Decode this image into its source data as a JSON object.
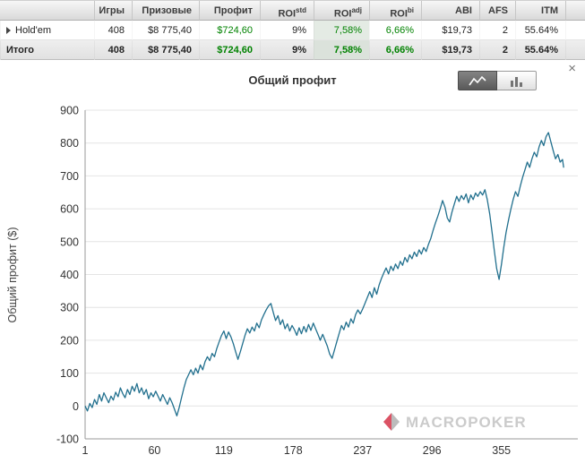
{
  "table": {
    "headers": [
      {
        "label": ""
      },
      {
        "label": "Игры"
      },
      {
        "label": "Призовые"
      },
      {
        "label": "Профит"
      },
      {
        "label": "ROI",
        "sup": "std"
      },
      {
        "label": "ROI",
        "sup": "adj"
      },
      {
        "label": "ROI",
        "sup": "bi"
      },
      {
        "label": "ABI"
      },
      {
        "label": "AFS"
      },
      {
        "label": "ITM"
      }
    ],
    "rows": {
      "holdem": {
        "name": "Hold'em",
        "games": "408",
        "prizes": "$8 775,40",
        "profit": "$724,60",
        "roi_std": "9%",
        "roi_adj": "7,58%",
        "roi_bi": "6,66%",
        "abi": "$19,73",
        "afs": "2",
        "itm": "55.64%"
      },
      "total": {
        "name": "Итого",
        "games": "408",
        "prizes": "$8 775,40",
        "profit": "$724,60",
        "roi_std": "9%",
        "roi_adj": "7,58%",
        "roi_bi": "6,66%",
        "abi": "$19,73",
        "afs": "2",
        "itm": "55.64%"
      }
    }
  },
  "panel": {
    "title": "Общий профит",
    "close": "×"
  },
  "watermark": {
    "text": "MACROPOKER"
  },
  "chart_data": {
    "type": "line",
    "title": "Общий профит",
    "xlabel": "",
    "ylabel": "Общий профит ($)",
    "xlim": [
      1,
      420
    ],
    "ylim": [
      -100,
      900
    ],
    "x_ticks": [
      1,
      60,
      119,
      178,
      237,
      296,
      355
    ],
    "y_ticks": [
      -100,
      0,
      100,
      200,
      300,
      400,
      500,
      600,
      700,
      800,
      900
    ],
    "grid": "horizontal",
    "legend": "none",
    "line_color": "#22708e",
    "points": [
      [
        1,
        0
      ],
      [
        3,
        -15
      ],
      [
        5,
        8
      ],
      [
        7,
        -5
      ],
      [
        9,
        20
      ],
      [
        11,
        5
      ],
      [
        13,
        35
      ],
      [
        15,
        15
      ],
      [
        17,
        40
      ],
      [
        19,
        25
      ],
      [
        21,
        10
      ],
      [
        23,
        30
      ],
      [
        25,
        18
      ],
      [
        27,
        42
      ],
      [
        29,
        28
      ],
      [
        31,
        55
      ],
      [
        33,
        38
      ],
      [
        35,
        25
      ],
      [
        37,
        50
      ],
      [
        39,
        35
      ],
      [
        41,
        60
      ],
      [
        43,
        45
      ],
      [
        45,
        68
      ],
      [
        47,
        40
      ],
      [
        49,
        55
      ],
      [
        51,
        35
      ],
      [
        53,
        50
      ],
      [
        55,
        22
      ],
      [
        57,
        40
      ],
      [
        59,
        28
      ],
      [
        61,
        45
      ],
      [
        63,
        30
      ],
      [
        65,
        15
      ],
      [
        67,
        35
      ],
      [
        69,
        20
      ],
      [
        71,
        5
      ],
      [
        73,
        25
      ],
      [
        75,
        10
      ],
      [
        77,
        -10
      ],
      [
        79,
        -30
      ],
      [
        81,
        -5
      ],
      [
        83,
        25
      ],
      [
        85,
        55
      ],
      [
        87,
        80
      ],
      [
        89,
        95
      ],
      [
        91,
        110
      ],
      [
        93,
        95
      ],
      [
        95,
        115
      ],
      [
        97,
        100
      ],
      [
        99,
        125
      ],
      [
        101,
        110
      ],
      [
        103,
        135
      ],
      [
        105,
        150
      ],
      [
        107,
        138
      ],
      [
        109,
        160
      ],
      [
        111,
        150
      ],
      [
        113,
        175
      ],
      [
        115,
        195
      ],
      [
        117,
        215
      ],
      [
        119,
        228
      ],
      [
        121,
        205
      ],
      [
        123,
        225
      ],
      [
        125,
        210
      ],
      [
        127,
        190
      ],
      [
        129,
        165
      ],
      [
        131,
        142
      ],
      [
        133,
        165
      ],
      [
        135,
        190
      ],
      [
        137,
        215
      ],
      [
        139,
        235
      ],
      [
        141,
        222
      ],
      [
        143,
        240
      ],
      [
        145,
        228
      ],
      [
        147,
        252
      ],
      [
        149,
        238
      ],
      [
        151,
        262
      ],
      [
        153,
        278
      ],
      [
        155,
        292
      ],
      [
        157,
        305
      ],
      [
        159,
        312
      ],
      [
        161,
        285
      ],
      [
        163,
        260
      ],
      [
        165,
        275
      ],
      [
        167,
        248
      ],
      [
        169,
        262
      ],
      [
        171,
        235
      ],
      [
        173,
        250
      ],
      [
        175,
        228
      ],
      [
        177,
        245
      ],
      [
        179,
        232
      ],
      [
        181,
        215
      ],
      [
        183,
        238
      ],
      [
        185,
        220
      ],
      [
        187,
        242
      ],
      [
        189,
        225
      ],
      [
        191,
        248
      ],
      [
        193,
        230
      ],
      [
        195,
        252
      ],
      [
        197,
        235
      ],
      [
        199,
        218
      ],
      [
        201,
        200
      ],
      [
        203,
        218
      ],
      [
        205,
        200
      ],
      [
        207,
        182
      ],
      [
        209,
        158
      ],
      [
        211,
        145
      ],
      [
        213,
        170
      ],
      [
        215,
        195
      ],
      [
        217,
        220
      ],
      [
        219,
        245
      ],
      [
        221,
        232
      ],
      [
        223,
        255
      ],
      [
        225,
        240
      ],
      [
        227,
        265
      ],
      [
        229,
        252
      ],
      [
        231,
        278
      ],
      [
        233,
        292
      ],
      [
        235,
        280
      ],
      [
        237,
        295
      ],
      [
        239,
        312
      ],
      [
        241,
        330
      ],
      [
        243,
        348
      ],
      [
        245,
        330
      ],
      [
        247,
        360
      ],
      [
        249,
        340
      ],
      [
        251,
        368
      ],
      [
        253,
        388
      ],
      [
        255,
        405
      ],
      [
        257,
        420
      ],
      [
        259,
        402
      ],
      [
        261,
        425
      ],
      [
        263,
        412
      ],
      [
        265,
        432
      ],
      [
        267,
        418
      ],
      [
        269,
        440
      ],
      [
        271,
        428
      ],
      [
        273,
        452
      ],
      [
        275,
        438
      ],
      [
        277,
        460
      ],
      [
        279,
        448
      ],
      [
        281,
        468
      ],
      [
        283,
        455
      ],
      [
        285,
        475
      ],
      [
        287,
        462
      ],
      [
        289,
        482
      ],
      [
        291,
        470
      ],
      [
        293,
        492
      ],
      [
        295,
        510
      ],
      [
        297,
        535
      ],
      [
        299,
        558
      ],
      [
        301,
        578
      ],
      [
        303,
        600
      ],
      [
        305,
        625
      ],
      [
        307,
        605
      ],
      [
        309,
        572
      ],
      [
        311,
        560
      ],
      [
        313,
        590
      ],
      [
        315,
        615
      ],
      [
        317,
        638
      ],
      [
        319,
        622
      ],
      [
        321,
        640
      ],
      [
        323,
        628
      ],
      [
        325,
        645
      ],
      [
        327,
        618
      ],
      [
        329,
        642
      ],
      [
        331,
        628
      ],
      [
        333,
        648
      ],
      [
        335,
        638
      ],
      [
        337,
        652
      ],
      [
        339,
        642
      ],
      [
        341,
        658
      ],
      [
        343,
        628
      ],
      [
        345,
        585
      ],
      [
        347,
        530
      ],
      [
        349,
        472
      ],
      [
        351,
        418
      ],
      [
        353,
        385
      ],
      [
        355,
        430
      ],
      [
        357,
        482
      ],
      [
        359,
        528
      ],
      [
        361,
        565
      ],
      [
        363,
        598
      ],
      [
        365,
        628
      ],
      [
        367,
        652
      ],
      [
        369,
        638
      ],
      [
        371,
        668
      ],
      [
        373,
        695
      ],
      [
        375,
        718
      ],
      [
        377,
        742
      ],
      [
        379,
        726
      ],
      [
        381,
        752
      ],
      [
        383,
        772
      ],
      [
        385,
        758
      ],
      [
        387,
        788
      ],
      [
        389,
        808
      ],
      [
        391,
        792
      ],
      [
        393,
        820
      ],
      [
        395,
        832
      ],
      [
        397,
        805
      ],
      [
        399,
        778
      ],
      [
        401,
        752
      ],
      [
        403,
        765
      ],
      [
        405,
        742
      ],
      [
        407,
        750
      ],
      [
        408,
        725
      ]
    ]
  }
}
